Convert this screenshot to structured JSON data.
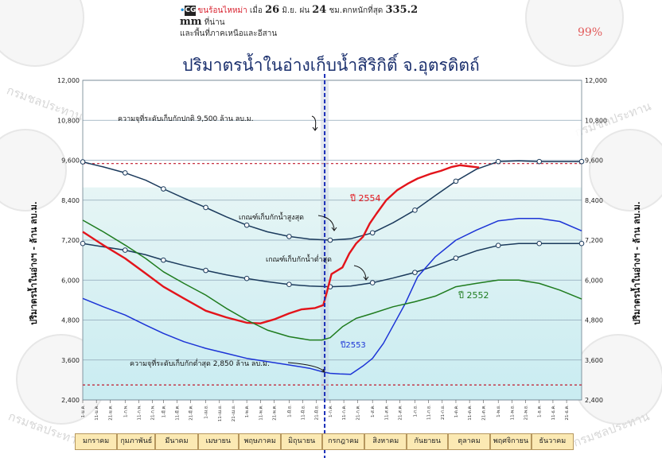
{
  "headline": {
    "logo": "CG",
    "text_red": "ขนร้อนไหหม่า",
    "text_1": " เมื่อ ",
    "day": "26",
    "text_2": " มิ.ย. ฝน ",
    "hours": "24",
    "text_3": " ชม.ตกหนักที่สุด ",
    "amount": "335.2 mm",
    "text_4": " ที่น่าน",
    "line2": "และพื้นที่ภาคเหนือและอีสาน"
  },
  "percent": "99%",
  "watermark_text": "กรมชลประทาน",
  "colors": {
    "title": "#1a2f6d",
    "grid": "#8fa6b8",
    "band_top": "#e6f5f5",
    "band_bottom": "#c9ecf1",
    "dashed_limit": "#c0182a",
    "today_line": "#1b2fb8",
    "today_band": "#c6cfdc",
    "upper_rule": "#1b3a5c",
    "lower_rule": "#1b3a5c",
    "y2554": "#e3141b",
    "y2553": "#1c34d6",
    "y2552": "#1f7c1f",
    "month_bg": "#fbe9b3"
  },
  "chart_data": {
    "type": "line",
    "title": "ปริมาตรน้ำในอ่างเก็บน้ำสิริกิติ์ จ.อุตรดิตถ์",
    "ylabel_left": "ปริมาตรน้ำในอ่างฯ - ล้าน ลบ.ม.",
    "ylabel_right": "ปริมาตรน้ำในอ่างฯ - ล้าน ลบ.ม.",
    "ylim": [
      2400,
      12000
    ],
    "yticks": [
      2400,
      3600,
      4800,
      6000,
      7200,
      8400,
      9600,
      10800,
      12000
    ],
    "ytick_labels": [
      "2,400",
      "3,600",
      "4,800",
      "6,000",
      "7,200",
      "8,400",
      "9,600",
      "10,800",
      "12,000"
    ],
    "xlim": [
      0,
      365
    ],
    "months": [
      "มกราคม",
      "กุมภาพันธ์",
      "มีนาคม",
      "เมษายน",
      "พฤษภาคม",
      "มิถุนายน",
      "กรกฎาคม",
      "สิงหาคม",
      "กันยายน",
      "ตุลาคม",
      "พฤศจิกายน",
      "ธันวาคม"
    ],
    "date_ticks": [
      {
        "day": 0,
        "label": "1-ม.ค."
      },
      {
        "day": 10,
        "label": "11-ม.ค."
      },
      {
        "day": 20,
        "label": "21-ม.ค."
      },
      {
        "day": 31,
        "label": "1-ก.พ."
      },
      {
        "day": 41,
        "label": "11-ก.พ."
      },
      {
        "day": 51,
        "label": "21-ก.พ."
      },
      {
        "day": 59,
        "label": "1-มี.ค."
      },
      {
        "day": 69,
        "label": "11-มี.ค."
      },
      {
        "day": 79,
        "label": "21-มี.ค."
      },
      {
        "day": 90,
        "label": "1-เม.ย."
      },
      {
        "day": 100,
        "label": "11-เม.ย."
      },
      {
        "day": 110,
        "label": "21-เม.ย."
      },
      {
        "day": 120,
        "label": "1-พ.ค."
      },
      {
        "day": 130,
        "label": "11-พ.ค."
      },
      {
        "day": 140,
        "label": "21-พ.ค."
      },
      {
        "day": 151,
        "label": "1-มิ.ย."
      },
      {
        "day": 161,
        "label": "11-มิ.ย."
      },
      {
        "day": 171,
        "label": "21-มิ.ย."
      },
      {
        "day": 181,
        "label": "1-ก.ค."
      },
      {
        "day": 191,
        "label": "11-ก.ค."
      },
      {
        "day": 201,
        "label": "21-ก.ค."
      },
      {
        "day": 212,
        "label": "1-ส.ค."
      },
      {
        "day": 222,
        "label": "11-ส.ค."
      },
      {
        "day": 232,
        "label": "21-ส.ค."
      },
      {
        "day": 243,
        "label": "1-ก.ย."
      },
      {
        "day": 253,
        "label": "11-ก.ย."
      },
      {
        "day": 263,
        "label": "21-ก.ย."
      },
      {
        "day": 273,
        "label": "1-ต.ค."
      },
      {
        "day": 283,
        "label": "11-ต.ค."
      },
      {
        "day": 293,
        "label": "21-ต.ค."
      },
      {
        "day": 304,
        "label": "1-พ.ย."
      },
      {
        "day": 314,
        "label": "11-พ.ย."
      },
      {
        "day": 324,
        "label": "21-พ.ย."
      },
      {
        "day": 334,
        "label": "1-ธ.ค."
      },
      {
        "day": 344,
        "label": "11-ธ.ค."
      },
      {
        "day": 354,
        "label": "21-ธ.ค."
      }
    ],
    "reference_lines": [
      {
        "label": "ความจุที่ระดับเก็บกักปกติ 9,500 ล้าน ลบ.ม.",
        "value": 9500
      },
      {
        "label": "ความจุที่ระดับเก็บกักต่ำสุด 2,850 ล้าน ลบ.ม.",
        "value": 2850
      }
    ],
    "current_day": 177,
    "series": [
      {
        "name": "เกณฑ์เก็บกักน้ำสูงสุด",
        "key": "upper_rule",
        "x": [
          0,
          15,
          31,
          46,
          59,
          74,
          90,
          105,
          120,
          135,
          151,
          166,
          181,
          196,
          212,
          227,
          243,
          258,
          273,
          288,
          304,
          319,
          334,
          349,
          365
        ],
        "values": [
          9550,
          9400,
          9220,
          9000,
          8740,
          8460,
          8180,
          7900,
          7650,
          7450,
          7310,
          7230,
          7200,
          7240,
          7420,
          7720,
          8100,
          8540,
          8970,
          9330,
          9560,
          9580,
          9560,
          9560,
          9560
        ],
        "markers": [
          0,
          31,
          59,
          90,
          120,
          151,
          181,
          212,
          243,
          273,
          304,
          334,
          365
        ]
      },
      {
        "name": "เกณฑ์เก็บกักน้ำต่ำสุด",
        "key": "lower_rule",
        "x": [
          0,
          15,
          31,
          46,
          59,
          74,
          90,
          105,
          120,
          135,
          151,
          166,
          181,
          196,
          212,
          227,
          243,
          258,
          273,
          288,
          304,
          319,
          334,
          349,
          365
        ],
        "values": [
          7100,
          7000,
          6900,
          6760,
          6600,
          6440,
          6290,
          6160,
          6050,
          5950,
          5870,
          5820,
          5800,
          5820,
          5920,
          6060,
          6230,
          6430,
          6660,
          6880,
          7040,
          7100,
          7100,
          7100,
          7100
        ],
        "markers": [
          0,
          31,
          59,
          90,
          120,
          151,
          181,
          212,
          243,
          273,
          304,
          334,
          365
        ]
      },
      {
        "name": "ปี 2554",
        "key": "y2554",
        "x": [
          0,
          15,
          31,
          46,
          59,
          74,
          90,
          105,
          120,
          130,
          140,
          151,
          160,
          170,
          176,
          179,
          182,
          186,
          190,
          195,
          200,
          205,
          210,
          215,
          222,
          230,
          238,
          245,
          255,
          262,
          270,
          276,
          282,
          290
        ],
        "values": [
          7450,
          7050,
          6650,
          6200,
          5800,
          5450,
          5080,
          4880,
          4720,
          4700,
          4820,
          5000,
          5120,
          5160,
          5250,
          5700,
          6180,
          6280,
          6380,
          6800,
          7100,
          7300,
          7700,
          8000,
          8400,
          8700,
          8900,
          9050,
          9200,
          9280,
          9400,
          9450,
          9420,
          9380
        ]
      },
      {
        "name": "ปี2553",
        "key": "y2553",
        "x": [
          0,
          15,
          31,
          46,
          59,
          74,
          90,
          105,
          120,
          135,
          151,
          166,
          175,
          181,
          188,
          196,
          205,
          212,
          220,
          228,
          236,
          245,
          258,
          273,
          288,
          304,
          319,
          334,
          349,
          365
        ],
        "values": [
          5450,
          5200,
          4950,
          4650,
          4400,
          4150,
          3950,
          3800,
          3650,
          3550,
          3450,
          3350,
          3250,
          3200,
          3180,
          3170,
          3420,
          3650,
          4100,
          4700,
          5300,
          6100,
          6700,
          7200,
          7500,
          7780,
          7850,
          7850,
          7760,
          7480
        ]
      },
      {
        "name": "ปี 2552",
        "key": "y2552",
        "x": [
          0,
          15,
          31,
          46,
          59,
          74,
          90,
          105,
          120,
          135,
          151,
          166,
          175,
          181,
          190,
          200,
          212,
          227,
          243,
          258,
          273,
          288,
          304,
          319,
          334,
          349,
          365
        ],
        "values": [
          7800,
          7450,
          7050,
          6650,
          6250,
          5900,
          5550,
          5150,
          4800,
          4500,
          4300,
          4200,
          4200,
          4270,
          4600,
          4850,
          5000,
          5200,
          5350,
          5520,
          5800,
          5900,
          6000,
          6000,
          5900,
          5700,
          5430
        ]
      }
    ],
    "annotations": [
      {
        "text": "ความจุที่ระดับเก็บกักปกติ 9,500 ล้าน ลบ.ม."
      },
      {
        "text": "เกณฑ์เก็บกักน้ำสูงสุด"
      },
      {
        "text": "เกณฑ์เก็บกักน้ำต่ำสุด"
      },
      {
        "text": "ปี 2554"
      },
      {
        "text": "ปี2553"
      },
      {
        "text": "ปี 2552"
      },
      {
        "text": "ความจุที่ระดับเก็บกักต่ำสุด 2,850 ล้าน ลบ.ม."
      }
    ]
  }
}
